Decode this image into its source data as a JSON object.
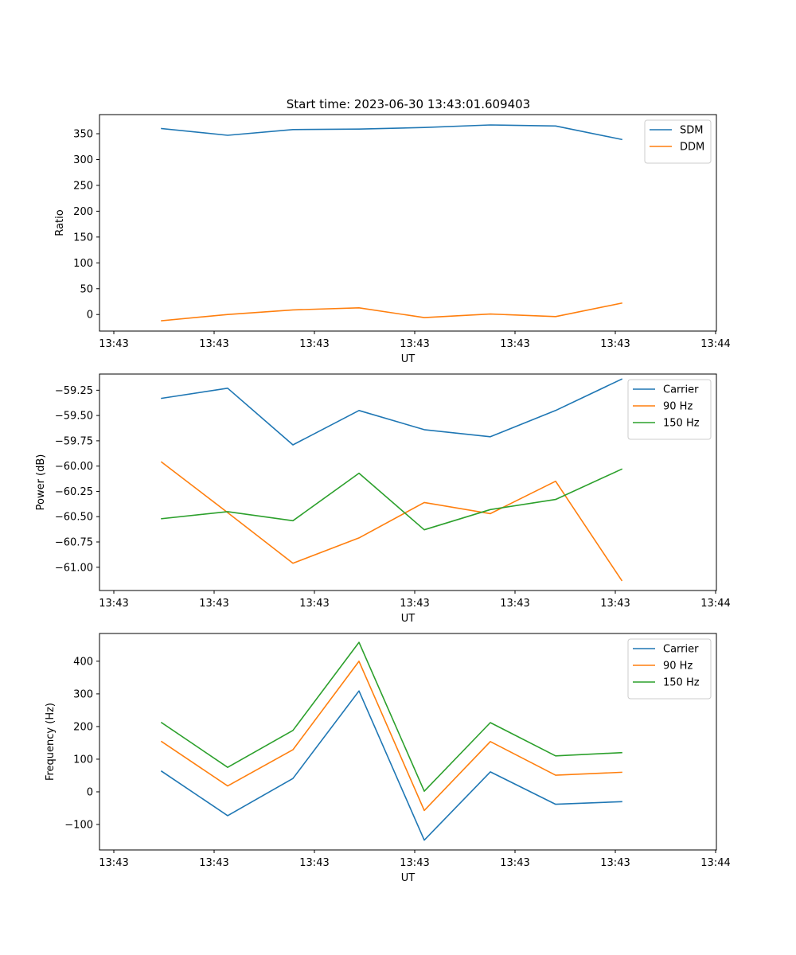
{
  "figure": {
    "suptitle": "Start time: 2023-06-30 13:43:01.609403"
  },
  "chart_data": [
    {
      "type": "line",
      "title": "Start time: 2023-06-30 13:43:01.609403",
      "xlabel": "UT",
      "ylabel": "Ratio",
      "x_tick_labels": [
        "13:43",
        "13:43",
        "13:43",
        "13:43",
        "13:43",
        "13:43",
        "13:44"
      ],
      "y_ticks": [
        0,
        50,
        100,
        150,
        200,
        250,
        300,
        350
      ],
      "ylim": [
        -32,
        387
      ],
      "legend_position": "upper right",
      "series": [
        {
          "name": "SDM",
          "color": "#1f77b4",
          "values": [
            360,
            347,
            358,
            359,
            362,
            367,
            365,
            339
          ]
        },
        {
          "name": "DDM",
          "color": "#ff7f0e",
          "values": [
            -12,
            0,
            9,
            13,
            -6,
            1,
            -4,
            22
          ]
        }
      ]
    },
    {
      "type": "line",
      "xlabel": "UT",
      "ylabel": "Power (dB)",
      "x_tick_labels": [
        "13:43",
        "13:43",
        "13:43",
        "13:43",
        "13:43",
        "13:43",
        "13:44"
      ],
      "y_ticks": [
        -61.0,
        -60.75,
        -60.5,
        -60.25,
        -60.0,
        -59.75,
        -59.5,
        -59.25
      ],
      "y_tick_labels": [
        "−61.00",
        "−60.75",
        "−60.50",
        "−60.25",
        "−60.00",
        "−59.75",
        "−59.50",
        "−59.25"
      ],
      "ylim": [
        -61.23,
        -59.09
      ],
      "legend_position": "upper right",
      "series": [
        {
          "name": "Carrier",
          "color": "#1f77b4",
          "values": [
            -59.33,
            -59.23,
            -59.79,
            -59.45,
            -59.64,
            -59.71,
            -59.45,
            -59.14
          ]
        },
        {
          "name": "90 Hz",
          "color": "#ff7f0e",
          "values": [
            -59.96,
            -60.46,
            -60.96,
            -60.71,
            -60.36,
            -60.47,
            -60.15,
            -61.13
          ]
        },
        {
          "name": "150 Hz",
          "color": "#2ca02c",
          "values": [
            -60.52,
            -60.45,
            -60.54,
            -60.07,
            -60.63,
            -60.43,
            -60.33,
            -60.03
          ]
        }
      ]
    },
    {
      "type": "line",
      "xlabel": "UT",
      "ylabel": "Frequency (Hz)",
      "x_tick_labels": [
        "13:43",
        "13:43",
        "13:43",
        "13:43",
        "13:43",
        "13:43",
        "13:44"
      ],
      "y_ticks": [
        -100,
        0,
        100,
        200,
        300,
        400
      ],
      "y_tick_labels": [
        "−100",
        "0",
        "100",
        "200",
        "300",
        "400"
      ],
      "ylim": [
        -178,
        485
      ],
      "legend_position": "upper right",
      "series": [
        {
          "name": "Carrier",
          "color": "#1f77b4",
          "values": [
            63,
            -73,
            41,
            309,
            -148,
            61,
            -38,
            -30
          ]
        },
        {
          "name": "90 Hz",
          "color": "#ff7f0e",
          "values": [
            154,
            18,
            129,
            400,
            -57,
            154,
            51,
            60
          ]
        },
        {
          "name": "150 Hz",
          "color": "#2ca02c",
          "values": [
            212,
            75,
            188,
            458,
            2,
            212,
            110,
            120
          ]
        }
      ]
    }
  ]
}
